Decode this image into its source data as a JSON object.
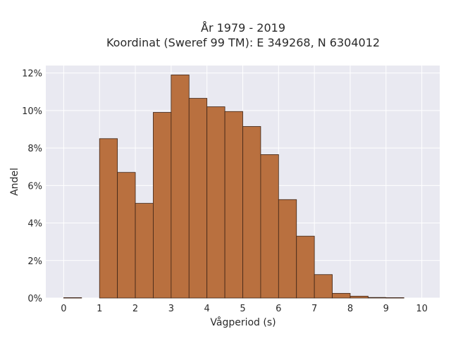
{
  "chart_data": {
    "type": "bar",
    "title_line1": "År 1979 - 2019",
    "title_line2": "Koordinat (Sweref 99 TM): E 349268, N 6304012",
    "xlabel": "Vågperiod (s)",
    "ylabel": "Andel",
    "xlim": [
      -0.5,
      10.5
    ],
    "ylim": [
      0,
      12.4
    ],
    "x_ticks": [
      "0",
      "1",
      "2",
      "3",
      "4",
      "5",
      "6",
      "7",
      "8",
      "9",
      "10"
    ],
    "y_ticks": [
      "0%",
      "2%",
      "4%",
      "6%",
      "8%",
      "10%",
      "12%"
    ],
    "bin_width": 0.5,
    "bins": [
      0.0,
      0.5,
      1.0,
      1.5,
      2.0,
      2.5,
      3.0,
      3.5,
      4.0,
      4.5,
      5.0,
      5.5,
      6.0,
      6.5,
      7.0,
      7.5,
      8.0,
      8.5,
      9.0,
      9.5
    ],
    "values": [
      0.02,
      0.0,
      8.5,
      6.7,
      5.05,
      9.9,
      11.9,
      10.65,
      10.2,
      9.95,
      9.15,
      7.65,
      5.25,
      3.3,
      1.25,
      0.25,
      0.1,
      0.03,
      0.02,
      0.0
    ],
    "bar_color": "#b9703f",
    "bar_edge_color": "#3d2416",
    "plot_background": "#e9e9f1",
    "grid": true,
    "legend": "none"
  }
}
